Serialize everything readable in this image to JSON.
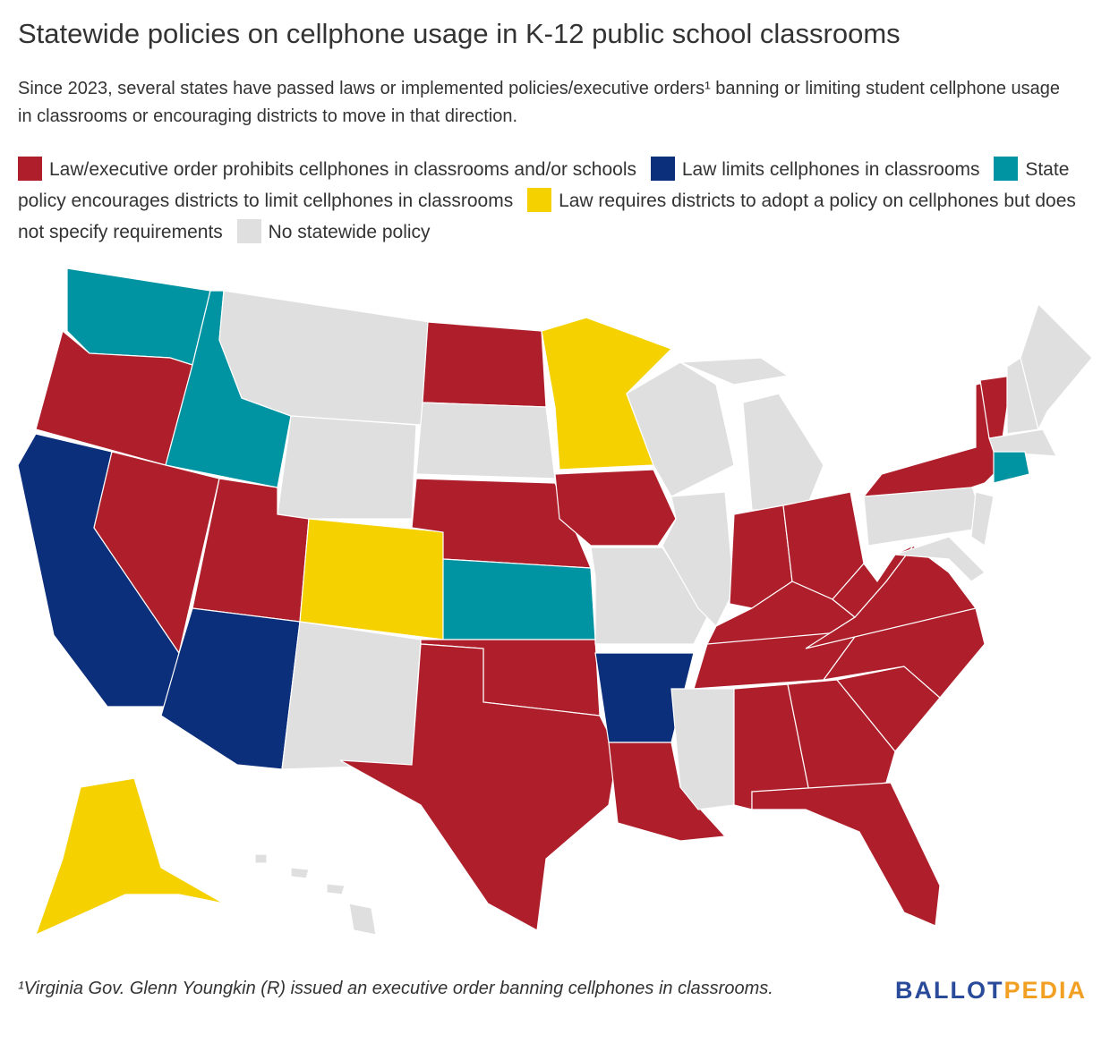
{
  "header": {
    "title": "Statewide policies on cellphone usage in K-12 public school classrooms",
    "subtitle": "Since 2023, several states have passed laws or implemented policies/executive orders¹ banning or limiting student cellphone usage in classrooms or encouraging districts to move in that direction."
  },
  "legend": [
    {
      "label": "Law/executive order prohibits cellphones in classrooms and/or schools",
      "color": "#ae1f2b"
    },
    {
      "label": "Law limits cellphones in classrooms",
      "color": "#0c2f7c"
    },
    {
      "label": "State policy encourages districts to limit cellphones in classrooms",
      "color": "#0093a2"
    },
    {
      "label": "Law requires districts to adopt a policy on cellphones but does not specify requirements",
      "color": "#f5d100"
    },
    {
      "label": "No statewide policy",
      "color": "#dfdfdf"
    }
  ],
  "footnote": "¹Virginia Gov. Glenn Youngkin (R) issued an executive order banning cellphones in classrooms.",
  "logo": {
    "part1": "BALLOT",
    "part1_color": "#2a4a9a",
    "part2": "PEDIA",
    "part2_color": "#f2a023"
  }
}
